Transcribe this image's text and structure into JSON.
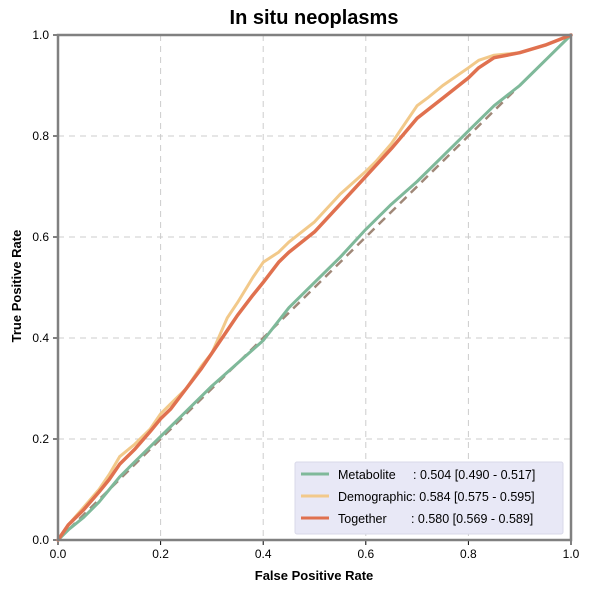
{
  "chart_data": {
    "type": "line",
    "title": "In situ neoplasms",
    "xlabel": "False Positive Rate",
    "ylabel": "True Positive Rate",
    "xlim": [
      0,
      1
    ],
    "ylim": [
      0,
      1
    ],
    "x_ticks": [
      "0.0",
      "0.2",
      "0.4",
      "0.6",
      "0.8",
      "1.0"
    ],
    "y_ticks": [
      "0.0",
      "0.2",
      "0.4",
      "0.6",
      "0.8",
      "1.0"
    ],
    "grid": true,
    "legend_position": "lower-right",
    "diagonal": {
      "x": [
        0,
        1
      ],
      "y": [
        0,
        1
      ],
      "color": "#a08878",
      "style": "dashed"
    },
    "series": [
      {
        "name": "Metabolite",
        "legend_label": "Metabolite     : 0.504 [0.490 - 0.517]",
        "color": "#7fb99a",
        "x": [
          0,
          0.02,
          0.05,
          0.08,
          0.1,
          0.12,
          0.15,
          0.18,
          0.2,
          0.25,
          0.3,
          0.35,
          0.4,
          0.45,
          0.5,
          0.55,
          0.6,
          0.65,
          0.7,
          0.75,
          0.8,
          0.85,
          0.9,
          0.95,
          1.0
        ],
        "y": [
          0,
          0.02,
          0.045,
          0.075,
          0.1,
          0.125,
          0.155,
          0.185,
          0.205,
          0.255,
          0.305,
          0.35,
          0.395,
          0.46,
          0.51,
          0.56,
          0.615,
          0.665,
          0.71,
          0.76,
          0.81,
          0.86,
          0.9,
          0.95,
          1.0
        ]
      },
      {
        "name": "Demographic",
        "legend_label": "Demographic: 0.584 [0.575 - 0.595]",
        "color": "#f2c98a",
        "x": [
          0,
          0.02,
          0.05,
          0.08,
          0.1,
          0.12,
          0.15,
          0.18,
          0.2,
          0.22,
          0.25,
          0.28,
          0.3,
          0.33,
          0.35,
          0.38,
          0.4,
          0.43,
          0.45,
          0.5,
          0.55,
          0.6,
          0.62,
          0.65,
          0.7,
          0.72,
          0.75,
          0.8,
          0.82,
          0.85,
          0.9,
          0.95,
          1.0
        ],
        "y": [
          0,
          0.03,
          0.065,
          0.1,
          0.13,
          0.165,
          0.19,
          0.22,
          0.25,
          0.27,
          0.3,
          0.345,
          0.37,
          0.44,
          0.47,
          0.52,
          0.55,
          0.57,
          0.59,
          0.63,
          0.685,
          0.73,
          0.75,
          0.785,
          0.86,
          0.875,
          0.9,
          0.935,
          0.95,
          0.96,
          0.965,
          0.98,
          1.0
        ]
      },
      {
        "name": "Together",
        "legend_label": "Together       : 0.580 [0.569 - 0.589]",
        "color": "#e0714f",
        "x": [
          0,
          0.02,
          0.05,
          0.08,
          0.1,
          0.12,
          0.15,
          0.18,
          0.2,
          0.22,
          0.25,
          0.28,
          0.3,
          0.33,
          0.35,
          0.38,
          0.4,
          0.43,
          0.45,
          0.5,
          0.55,
          0.6,
          0.65,
          0.7,
          0.75,
          0.8,
          0.82,
          0.85,
          0.9,
          0.95,
          1.0
        ],
        "y": [
          0,
          0.03,
          0.06,
          0.095,
          0.12,
          0.15,
          0.18,
          0.215,
          0.24,
          0.26,
          0.3,
          0.34,
          0.37,
          0.415,
          0.445,
          0.485,
          0.51,
          0.55,
          0.57,
          0.61,
          0.665,
          0.72,
          0.775,
          0.835,
          0.875,
          0.915,
          0.935,
          0.955,
          0.965,
          0.98,
          1.0
        ]
      }
    ]
  }
}
